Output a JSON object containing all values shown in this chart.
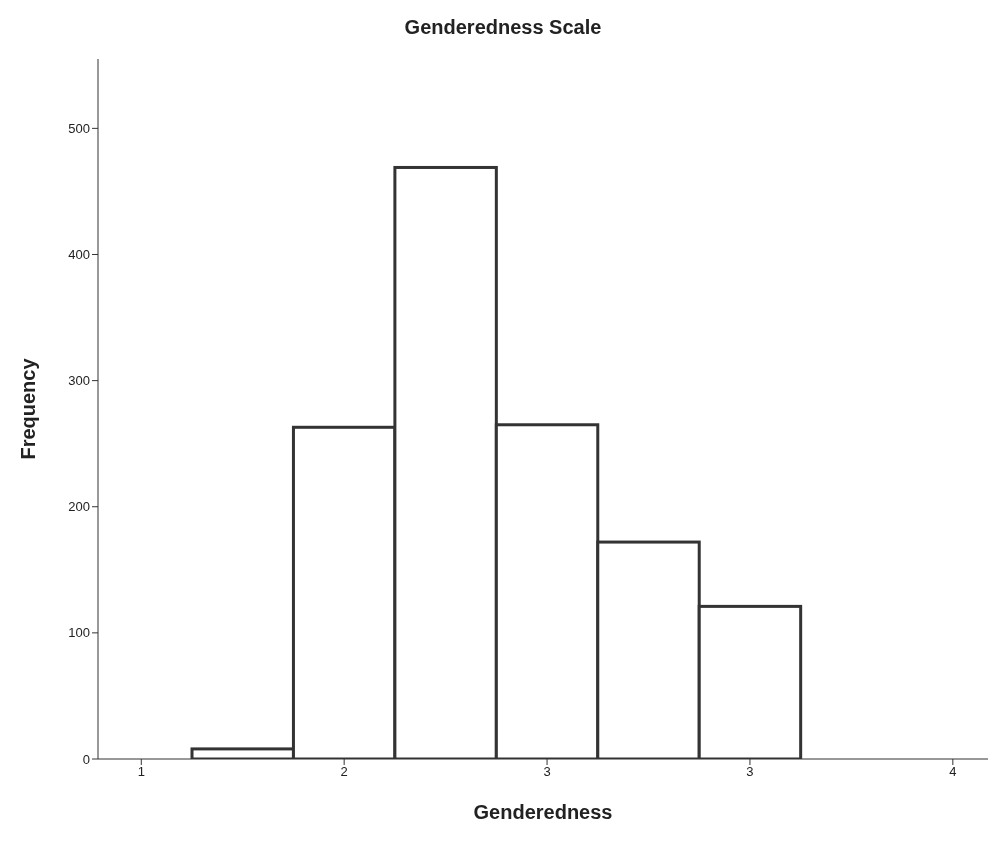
{
  "chart_data": {
    "type": "histogram",
    "title": "Genderedness Scale",
    "xlabel": "Genderedness",
    "ylabel": "Frequency",
    "bins": [
      1.1875,
      1.5625,
      1.9375,
      2.3125,
      2.6875,
      3.0625,
      3.4375
    ],
    "values": [
      8,
      263,
      469,
      265,
      172,
      121
    ],
    "color": "#ffffff",
    "xlim": [
      0.84,
      4.13
    ],
    "xticks": [
      1,
      {
        "value": 1.75,
        "label": "2"
      },
      {
        "value": 2.5,
        "label": "3"
      },
      {
        "value": 3.25,
        "label": "3"
      },
      4
    ],
    "ylim": [
      0,
      555
    ],
    "yticks": [
      0,
      100,
      200,
      300,
      400,
      500
    ],
    "grid": false
  }
}
